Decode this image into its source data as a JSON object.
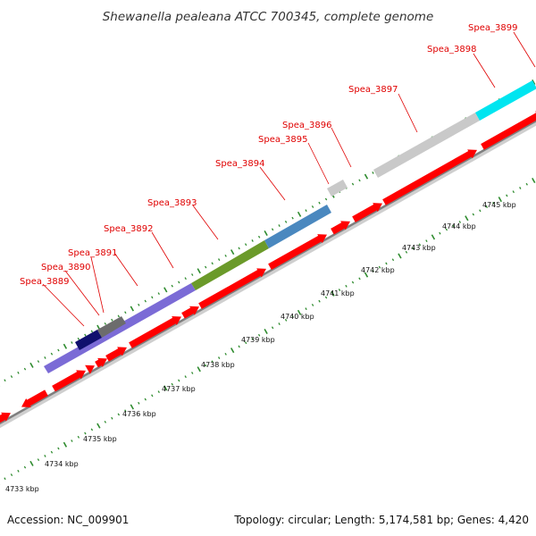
{
  "title": "Shewanella pealeana ATCC 700345, complete genome",
  "footer": {
    "accession": "Accession: NC_009901",
    "summary": "Topology: circular; Length: 5,174,581 bp; Genes: 4,420"
  },
  "gene_labels": [
    "Spea_3889",
    "Spea_3890",
    "Spea_3891",
    "Spea_3892",
    "Spea_3893",
    "Spea_3894",
    "Spea_3895",
    "Spea_3896",
    "Spea_3897",
    "Spea_3898",
    "Spea_3899"
  ],
  "kbp_labels": [
    "4733 kbp",
    "4734 kbp",
    "4735 kbp",
    "4736 kbp",
    "4737 kbp",
    "4738 kbp",
    "4739 kbp",
    "4740 kbp",
    "4741 kbp",
    "4742 kbp",
    "4743 kbp",
    "4744 kbp",
    "4745 kbp"
  ],
  "colors": {
    "cds_forward": "#ff0000",
    "gene_label": "#e00000",
    "backbone": "#7f7f7f",
    "tick": "#2e8b2e",
    "cog_purple": "#7b6bd6",
    "cog_dark_navy": "#10106e",
    "cog_grey": "#6c6c6c",
    "cog_olive": "#6b9a2a",
    "cog_steelblue": "#4a88bf",
    "cog_light_grey": "#c9c9c9",
    "cog_cyan": "#00e5f0"
  }
}
